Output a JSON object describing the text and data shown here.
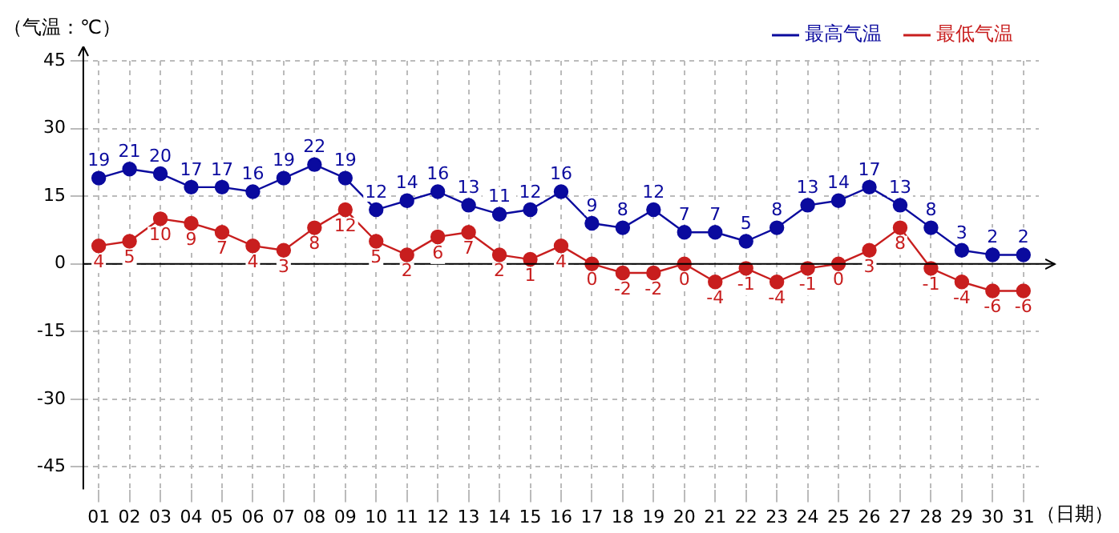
{
  "chart_data": {
    "type": "line",
    "ylabel": "（气温：℃）",
    "xlabel": "（日期）",
    "categories": [
      "01",
      "02",
      "03",
      "04",
      "05",
      "06",
      "07",
      "08",
      "09",
      "10",
      "11",
      "12",
      "13",
      "14",
      "15",
      "16",
      "17",
      "18",
      "19",
      "20",
      "21",
      "22",
      "23",
      "24",
      "25",
      "26",
      "27",
      "28",
      "29",
      "30",
      "31"
    ],
    "series": [
      {
        "name": "最高气温",
        "color": "#0a0a9e",
        "values": [
          19,
          21,
          20,
          17,
          17,
          16,
          19,
          22,
          19,
          12,
          14,
          16,
          13,
          11,
          12,
          16,
          9,
          8,
          12,
          7,
          7,
          5,
          8,
          13,
          14,
          17,
          13,
          8,
          3,
          2,
          2
        ]
      },
      {
        "name": "最低气温",
        "color": "#c81e1e",
        "values": [
          4,
          5,
          10,
          9,
          7,
          4,
          3,
          8,
          12,
          5,
          2,
          6,
          7,
          2,
          1,
          4,
          0,
          -2,
          -2,
          0,
          -4,
          -1,
          -4,
          -1,
          0,
          3,
          8,
          -1,
          -4,
          -6,
          -6
        ]
      }
    ],
    "ylim": [
      -50,
      45
    ],
    "yticks": [
      -45,
      -30,
      -15,
      0,
      15,
      30,
      45
    ],
    "grid": true,
    "legend": "top right",
    "marker": "circle",
    "line_style": "solid",
    "data_labels": true
  }
}
